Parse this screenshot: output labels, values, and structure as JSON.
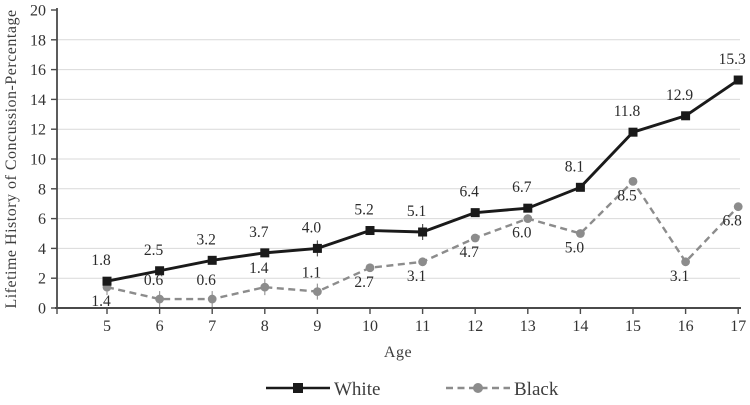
{
  "chart_data": {
    "type": "line",
    "title": "",
    "xlabel": "Age",
    "ylabel": "Lifetime History of Concussion-Percentage",
    "x": [
      5,
      6,
      7,
      8,
      9,
      10,
      11,
      12,
      13,
      14,
      15,
      16,
      17
    ],
    "ylim": [
      0,
      20
    ],
    "yticks": [
      0,
      2,
      4,
      6,
      8,
      10,
      12,
      14,
      16,
      18,
      20
    ],
    "grid": "horizontal",
    "legend_position": "bottom-center",
    "series": [
      {
        "name": "White",
        "color": "#1a1a1a",
        "line_style": "solid",
        "marker": "square",
        "values": [
          1.8,
          2.5,
          3.2,
          3.7,
          4.0,
          5.2,
          5.1,
          6.4,
          6.7,
          8.1,
          11.8,
          12.9,
          15.3
        ],
        "label_side": [
          "above",
          "above",
          "above",
          "above",
          "above",
          "above",
          "above",
          "above",
          "above",
          "above",
          "above",
          "above",
          "above"
        ]
      },
      {
        "name": "Black",
        "color": "#8c8c8c",
        "line_style": "dashed",
        "marker": "circle",
        "values": [
          1.4,
          0.6,
          0.6,
          1.4,
          1.1,
          2.7,
          3.1,
          4.7,
          6.0,
          5.0,
          8.5,
          3.1,
          6.8
        ],
        "label_side": [
          "below",
          "above",
          "above",
          "above",
          "above",
          "below",
          "below",
          "below",
          "below",
          "below",
          "below",
          "below",
          "below"
        ]
      }
    ],
    "colors": {
      "gridline": "#d9d9d9",
      "axis": "#4a4a4a",
      "tick_label": "#333333",
      "data_label": "#2b2b2b"
    }
  }
}
